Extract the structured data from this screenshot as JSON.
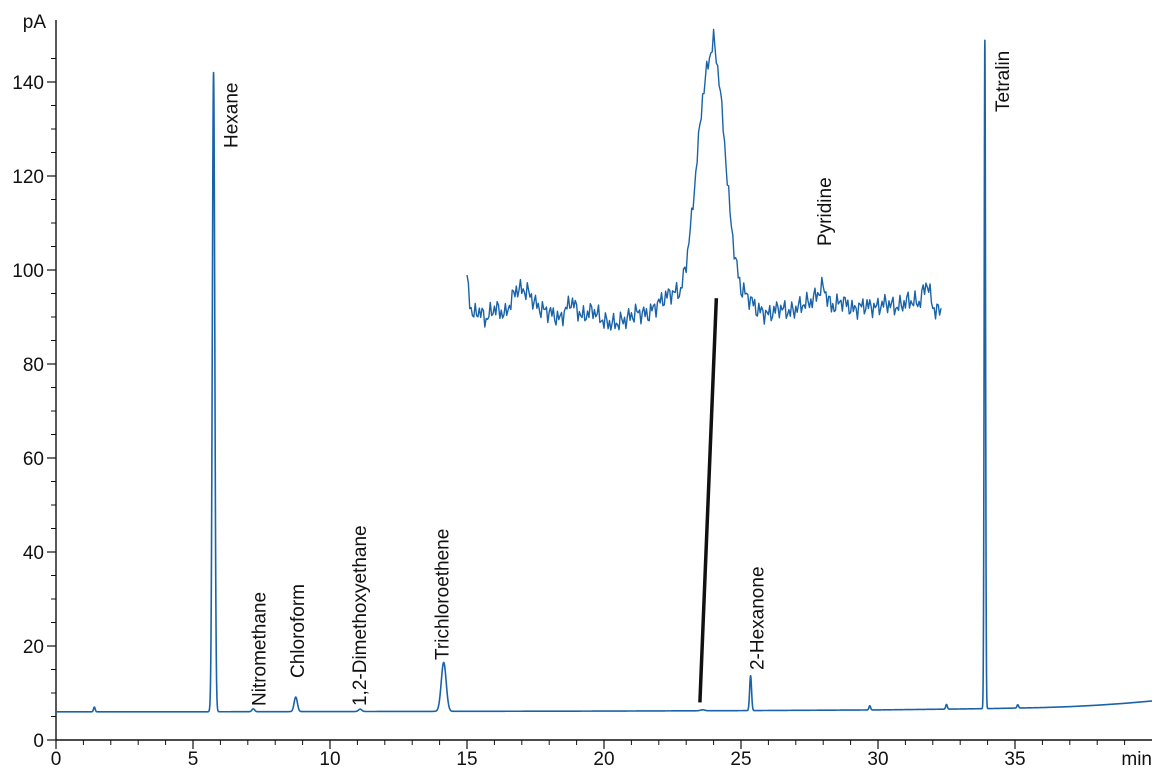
{
  "chart_data": {
    "type": "line",
    "title": "",
    "xlabel": "min",
    "ylabel": "pA",
    "xlim": [
      0,
      40
    ],
    "ylim": [
      0,
      150
    ],
    "x_ticks": [
      0,
      5,
      10,
      15,
      20,
      25,
      30,
      35
    ],
    "x_tick_labels": [
      "0",
      "5",
      "10",
      "15",
      "20",
      "25",
      "30",
      "35"
    ],
    "y_ticks": [
      0,
      20,
      40,
      60,
      80,
      100,
      120,
      140
    ],
    "y_tick_labels": [
      "0",
      "20",
      "40",
      "60",
      "80",
      "100",
      "120",
      "140"
    ],
    "grid": false,
    "line_color": "#1a63a8",
    "axis_color": "#111111",
    "zoom_line_color": "#111111",
    "baseline": [
      [
        0,
        6.0
      ],
      [
        5,
        6.0
      ],
      [
        10,
        6.05
      ],
      [
        15,
        6.1
      ],
      [
        20,
        6.15
      ],
      [
        25,
        6.25
      ],
      [
        30,
        6.4
      ],
      [
        33,
        6.6
      ],
      [
        34.2,
        6.7
      ],
      [
        36,
        6.9
      ],
      [
        37,
        7.1
      ],
      [
        38,
        7.4
      ],
      [
        39,
        7.8
      ],
      [
        40,
        8.3
      ]
    ],
    "peaks": [
      {
        "label": "",
        "rt": 1.4,
        "height": 1.0,
        "width": 0.03
      },
      {
        "label": "Hexane",
        "rt": 5.75,
        "height": 136.0,
        "width": 0.045
      },
      {
        "label": "Nitromethane",
        "rt": 7.2,
        "height": 0.6,
        "width": 0.05
      },
      {
        "label": "Chloroform",
        "rt": 8.75,
        "height": 3.1,
        "width": 0.06
      },
      {
        "label": "1,2-Dimethoxyethane",
        "rt": 11.1,
        "height": 0.5,
        "width": 0.06
      },
      {
        "label": "Trichloroethene",
        "rt": 14.15,
        "height": 10.4,
        "width": 0.09
      },
      {
        "label": "",
        "rt": 23.6,
        "height": 0.2,
        "width": 0.08
      },
      {
        "label": "2-Hexanone",
        "rt": 25.35,
        "height": 7.4,
        "width": 0.035
      },
      {
        "label": "",
        "rt": 29.7,
        "height": 0.9,
        "width": 0.03
      },
      {
        "label": "",
        "rt": 32.5,
        "height": 1.0,
        "width": 0.03
      },
      {
        "label": "Tetralin",
        "rt": 33.9,
        "height": 142.2,
        "width": 0.025
      },
      {
        "label": "",
        "rt": 35.1,
        "height": 0.7,
        "width": 0.03
      }
    ],
    "inset": {
      "label": "Pyridine",
      "x_start": 15.0,
      "x_end": 32.3,
      "noise_level": 91.5,
      "noise_amplitude": 2.4,
      "peak_rt": 24.0,
      "peak_height": 57.0,
      "peak_width": 0.5,
      "points": [
        [
          15.0,
          98.0
        ],
        [
          15.2,
          90.0
        ],
        [
          15.4,
          91.5
        ],
        [
          15.7,
          89.5
        ],
        [
          16.0,
          92.0
        ],
        [
          16.4,
          90.5
        ],
        [
          16.8,
          96.0
        ],
        [
          17.2,
          95.5
        ],
        [
          17.6,
          92.0
        ],
        [
          18.0,
          91.0
        ],
        [
          18.4,
          89.5
        ],
        [
          18.8,
          93.5
        ],
        [
          19.2,
          90.0
        ],
        [
          19.6,
          91.5
        ],
        [
          20.0,
          89.0
        ],
        [
          20.4,
          88.5
        ],
        [
          20.8,
          89.5
        ],
        [
          21.2,
          91.0
        ],
        [
          21.6,
          90.5
        ],
        [
          22.0,
          93.0
        ],
        [
          22.4,
          95.0
        ],
        [
          22.8,
          95.5
        ],
        [
          23.0,
          101.5
        ],
        [
          23.2,
          111.0
        ],
        [
          23.4,
          124.0
        ],
        [
          23.6,
          137.0
        ],
        [
          23.8,
          144.0
        ],
        [
          24.0,
          149.0
        ],
        [
          24.2,
          141.0
        ],
        [
          24.4,
          127.0
        ],
        [
          24.6,
          112.0
        ],
        [
          24.8,
          102.0
        ],
        [
          25.0,
          96.0
        ],
        [
          25.3,
          94.0
        ],
        [
          25.6,
          91.5
        ],
        [
          26.0,
          90.5
        ],
        [
          26.4,
          92.0
        ],
        [
          26.8,
          91.0
        ],
        [
          27.2,
          92.5
        ],
        [
          27.6,
          93.5
        ],
        [
          28.0,
          96.5
        ],
        [
          28.3,
          92.0
        ],
        [
          28.7,
          93.5
        ],
        [
          29.1,
          91.5
        ],
        [
          29.5,
          92.5
        ],
        [
          29.9,
          92.0
        ],
        [
          30.3,
          93.0
        ],
        [
          30.7,
          92.0
        ],
        [
          31.1,
          93.5
        ],
        [
          31.5,
          93.0
        ],
        [
          31.8,
          97.5
        ],
        [
          32.0,
          92.0
        ],
        [
          32.3,
          91.0
        ]
      ]
    },
    "zoom_line": {
      "from": [
        23.5,
        8.0
      ],
      "to": [
        24.1,
        94.0
      ]
    }
  }
}
